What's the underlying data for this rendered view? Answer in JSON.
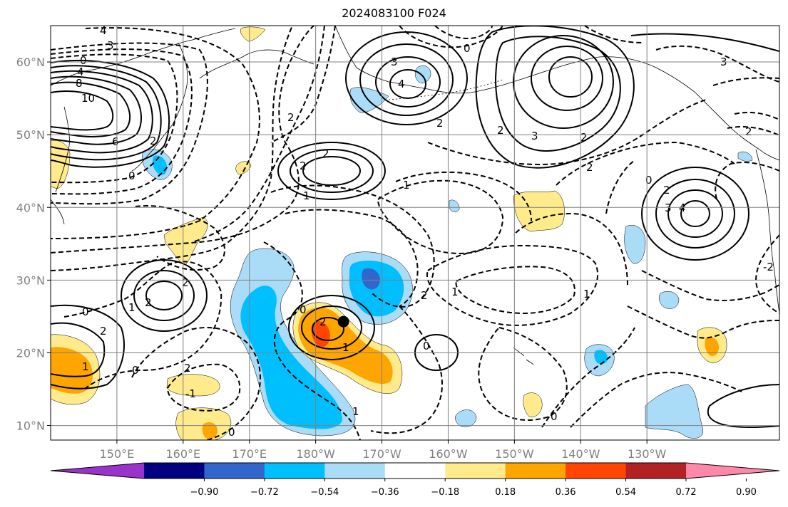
{
  "title": "2024083100 F024",
  "chart_data": {
    "type": "map",
    "title": "2024083100 F024",
    "lat_range": [
      8,
      65
    ],
    "lon_range_east": [
      140,
      250
    ],
    "lat_ticks": [
      {
        "value": 10,
        "label": "10°N"
      },
      {
        "value": 20,
        "label": "20°N"
      },
      {
        "value": 30,
        "label": "30°N"
      },
      {
        "value": 40,
        "label": "40°N"
      },
      {
        "value": 50,
        "label": "50°N"
      },
      {
        "value": 60,
        "label": "60°N"
      }
    ],
    "lon_ticks": [
      {
        "value": 150,
        "label": "150°E"
      },
      {
        "value": 160,
        "label": "160°E"
      },
      {
        "value": 170,
        "label": "170°E"
      },
      {
        "value": 180,
        "label": "180°W"
      },
      {
        "value": 190,
        "label": "170°W"
      },
      {
        "value": 200,
        "label": "160°W"
      },
      {
        "value": 210,
        "label": "150°W"
      },
      {
        "value": 220,
        "label": "140°W"
      },
      {
        "value": 230,
        "label": "130°W"
      }
    ],
    "colorbar": {
      "levels": [
        -0.9,
        -0.72,
        -0.54,
        -0.36,
        -0.18,
        0.18,
        0.36,
        0.54,
        0.72,
        0.9
      ],
      "tick_labels": [
        "−0.90",
        "−0.72",
        "−0.54",
        "−0.36",
        "−0.18",
        "0.18",
        "0.36",
        "0.54",
        "0.72",
        "0.90"
      ],
      "colors": [
        "#9933cc",
        "#000080",
        "#3366cc",
        "#00bfff",
        "#aadcf8",
        "#ffffff",
        "#ffeb8c",
        "#ffa500",
        "#ff4500",
        "#b22222",
        "#ff88aa"
      ]
    },
    "marker": {
      "lat": 24.3,
      "lon": 184.2
    },
    "contour_labels": [
      "4",
      "3",
      "0",
      "4",
      "8",
      "10",
      "6",
      "0",
      "2",
      "2",
      "1",
      "3",
      "4",
      "2",
      "2",
      "3",
      "2",
      "2",
      "0",
      "1",
      "2",
      "2",
      "0",
      "2",
      "3",
      "4",
      "2",
      "2",
      "1",
      "0",
      "0",
      "2",
      "2",
      "1",
      "2",
      "1",
      "0",
      "1",
      "0",
      "1",
      "2",
      "0",
      "2",
      "1",
      "3",
      "-2",
      "0",
      "-1"
    ]
  }
}
